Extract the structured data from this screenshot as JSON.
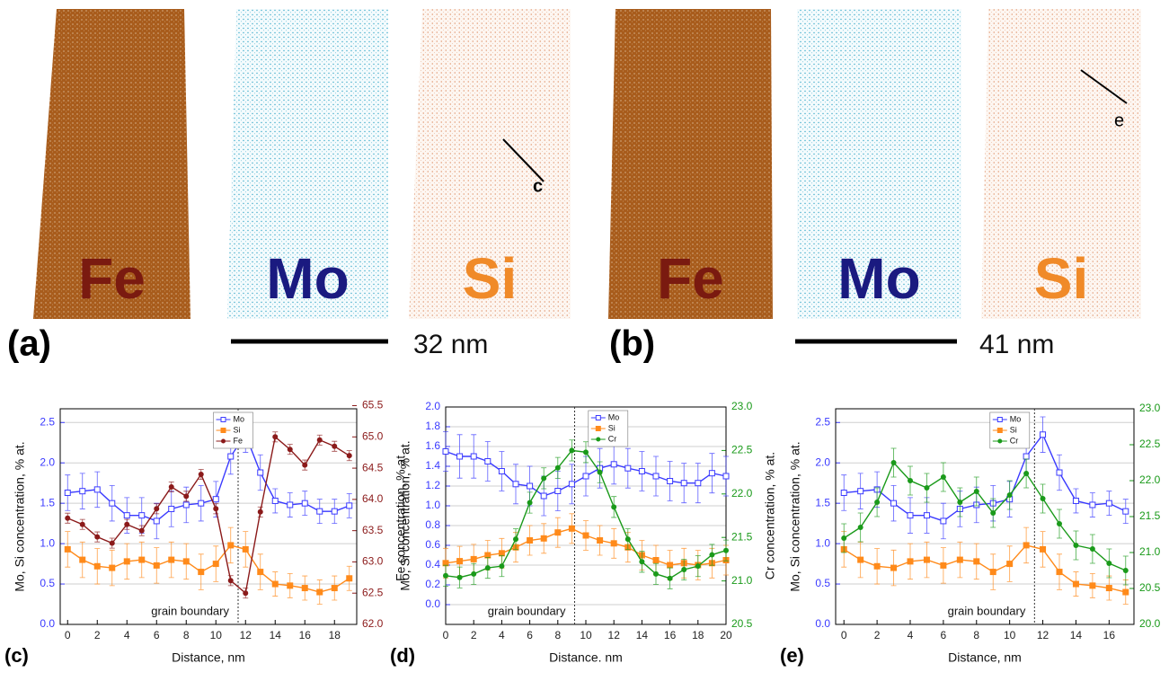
{
  "maps": [
    {
      "panel": "(a)",
      "scale": "32 nm",
      "images": [
        {
          "element": "Fe"
        },
        {
          "element": "Mo"
        },
        {
          "element": "Si",
          "line_label": "c"
        }
      ]
    },
    {
      "panel": "(b)",
      "scale": "41 nm",
      "images": [
        {
          "element": "Fe"
        },
        {
          "element": "Mo"
        },
        {
          "element": "Si",
          "line_label": "e"
        }
      ]
    }
  ],
  "chart_data": [
    {
      "type": "line",
      "label": "(c)",
      "xlabel": "Distance, nm",
      "ylabel": "Mo, Si concentration, % at.",
      "y2label": "Fe concentration, % at.",
      "annotation": "grain boundary",
      "vline": 11.5,
      "grid": true,
      "legend": "upper right",
      "x": [
        0,
        1,
        2,
        3,
        4,
        5,
        6,
        7,
        8,
        9,
        10,
        11,
        12,
        13,
        14,
        15,
        16,
        17,
        18,
        19
      ],
      "xlim": [
        -0.5,
        19.5
      ],
      "xticks": [
        0,
        2,
        4,
        6,
        8,
        10,
        12,
        14,
        16,
        18
      ],
      "ylim": [
        0,
        2.67
      ],
      "yticks": [
        {
          "value": 0,
          "label": "0.0"
        },
        0.5,
        {
          "value": 1,
          "label": "1.0"
        },
        1.5,
        {
          "value": 2,
          "label": "2.0"
        },
        2.5
      ],
      "y2lim": [
        62.0,
        65.45
      ],
      "y2ticks": [
        {
          "value": 62,
          "label": "62.0"
        },
        62.5,
        {
          "value": 63,
          "label": "63.0"
        },
        63.5,
        {
          "value": 64,
          "label": "64.0"
        },
        64.5,
        {
          "value": 65,
          "label": "65.0"
        },
        65.5
      ],
      "series": [
        {
          "name": "Mo",
          "color": "#3a3aff",
          "marker": "open-square",
          "values": [
            1.63,
            1.65,
            1.67,
            1.5,
            1.35,
            1.35,
            1.28,
            1.43,
            1.48,
            1.5,
            1.55,
            2.08,
            2.35,
            1.88,
            1.53,
            1.48,
            1.5,
            1.4,
            1.4,
            1.47
          ],
          "errors": [
            0.22,
            0.22,
            0.22,
            0.22,
            0.22,
            0.22,
            0.22,
            0.22,
            0.22,
            0.22,
            0.22,
            0.22,
            0.22,
            0.22,
            0.15,
            0.15,
            0.15,
            0.15,
            0.15,
            0.15
          ]
        },
        {
          "name": "Si",
          "color": "#ff8a1a",
          "marker": "square",
          "values": [
            0.93,
            0.8,
            0.72,
            0.7,
            0.78,
            0.8,
            0.73,
            0.8,
            0.78,
            0.65,
            0.75,
            0.98,
            0.93,
            0.65,
            0.5,
            0.48,
            0.45,
            0.4,
            0.45,
            0.57
          ],
          "errors": [
            0.22,
            0.22,
            0.22,
            0.22,
            0.22,
            0.22,
            0.22,
            0.22,
            0.22,
            0.22,
            0.22,
            0.22,
            0.22,
            0.22,
            0.15,
            0.15,
            0.15,
            0.15,
            0.15,
            0.15
          ]
        },
        {
          "name": "Fe",
          "color": "#8b1a1a",
          "marker": "circle",
          "axis": "y2",
          "values": [
            63.7,
            63.6,
            63.4,
            63.3,
            63.6,
            63.5,
            63.85,
            64.2,
            64.05,
            64.4,
            63.85,
            62.7,
            62.5,
            63.8,
            65.0,
            64.8,
            64.55,
            64.95,
            64.85,
            64.7
          ],
          "errors": [
            0.08,
            0.08,
            0.08,
            0.08,
            0.08,
            0.08,
            0.08,
            0.08,
            0.08,
            0.08,
            0.08,
            0.08,
            0.08,
            0.08,
            0.08,
            0.08,
            0.08,
            0.08,
            0.08,
            0.08
          ]
        }
      ]
    },
    {
      "type": "line",
      "label": "(d)",
      "xlabel": "Distance. nm",
      "ylabel": "Mo, Si concentration, % at.",
      "y2label": "Cr concentration, % at.",
      "annotation": "grain boundary",
      "vline": 9.2,
      "grid": true,
      "legend": "upper right",
      "x": [
        0,
        1,
        2,
        3,
        4,
        5,
        6,
        7,
        8,
        9,
        10,
        11,
        12,
        13,
        14,
        15,
        16,
        17,
        18,
        19,
        20
      ],
      "xlim": [
        0,
        20
      ],
      "xticks": [
        0,
        2,
        4,
        6,
        8,
        10,
        12,
        14,
        16,
        18,
        20
      ],
      "ylim": [
        -0.2,
        2.0
      ],
      "yticks": [
        {
          "value": 0,
          "label": "0.0"
        },
        0.2,
        0.4,
        0.6,
        0.8,
        {
          "value": 1,
          "label": "1.0"
        },
        1.2,
        1.4,
        1.6,
        1.8,
        {
          "value": 2,
          "label": "2.0"
        }
      ],
      "y2lim": [
        20.5,
        23.0
      ],
      "y2ticks": [
        20.5,
        {
          "value": 21,
          "label": "21.0"
        },
        21.5,
        {
          "value": 22,
          "label": "22.0"
        },
        22.5,
        {
          "value": 23,
          "label": "23.0"
        }
      ],
      "series": [
        {
          "name": "Mo",
          "color": "#3a3aff",
          "marker": "open-square",
          "values": [
            1.55,
            1.5,
            1.5,
            1.45,
            1.35,
            1.22,
            1.2,
            1.1,
            1.15,
            1.22,
            1.3,
            1.38,
            1.42,
            1.38,
            1.35,
            1.3,
            1.25,
            1.23,
            1.23,
            1.33,
            1.3
          ],
          "errors": [
            0.2,
            0.22,
            0.22,
            0.2,
            0.2,
            0.2,
            0.2,
            0.2,
            0.2,
            0.2,
            0.2,
            0.2,
            0.2,
            0.2,
            0.2,
            0.2,
            0.2,
            0.2,
            0.2,
            0.2,
            0.2
          ]
        },
        {
          "name": "Si",
          "color": "#ff8a1a",
          "marker": "square",
          "values": [
            0.42,
            0.44,
            0.46,
            0.5,
            0.52,
            0.58,
            0.65,
            0.67,
            0.73,
            0.77,
            0.7,
            0.65,
            0.62,
            0.58,
            0.5,
            0.45,
            0.4,
            0.42,
            0.4,
            0.42,
            0.45
          ],
          "errors": [
            0.15,
            0.15,
            0.15,
            0.15,
            0.15,
            0.15,
            0.15,
            0.15,
            0.15,
            0.15,
            0.15,
            0.15,
            0.15,
            0.15,
            0.15,
            0.15,
            0.15,
            0.15,
            0.15,
            0.15,
            0.15
          ]
        },
        {
          "name": "Cr",
          "color": "#1a9a1a",
          "marker": "circle",
          "axis": "y2",
          "values": [
            21.06,
            21.04,
            21.08,
            21.15,
            21.17,
            21.48,
            21.9,
            22.18,
            22.3,
            22.5,
            22.48,
            22.25,
            21.85,
            21.48,
            21.22,
            21.08,
            21.03,
            21.13,
            21.17,
            21.3,
            21.35
          ],
          "errors": [
            0.12,
            0.12,
            0.12,
            0.12,
            0.12,
            0.12,
            0.12,
            0.12,
            0.12,
            0.12,
            0.12,
            0.12,
            0.12,
            0.12,
            0.12,
            0.12,
            0.12,
            0.12,
            0.12,
            0.12,
            0.12
          ]
        }
      ]
    },
    {
      "type": "line",
      "label": "(e)",
      "xlabel": "Distance, nm",
      "ylabel": "Mo, Si concentration, % at.",
      "y2label": "Cr concentration, % at.",
      "annotation": "grain boundary",
      "vline": 11.5,
      "grid": true,
      "legend": "upper right",
      "x": [
        0,
        1,
        2,
        3,
        4,
        5,
        6,
        7,
        8,
        9,
        10,
        11,
        12,
        13,
        14,
        15,
        16,
        17
      ],
      "xlim": [
        -0.5,
        17.5
      ],
      "xticks": [
        0,
        2,
        4,
        6,
        8,
        10,
        12,
        14,
        16
      ],
      "ylim": [
        0,
        2.67
      ],
      "yticks": [
        {
          "value": 0,
          "label": "0.0"
        },
        0.5,
        {
          "value": 1,
          "label": "1.0"
        },
        1.5,
        {
          "value": 2,
          "label": "2.0"
        },
        2.5
      ],
      "y2lim": [
        20.0,
        23.0
      ],
      "y2ticks": [
        {
          "value": 20,
          "label": "20.0"
        },
        20.5,
        {
          "value": 21,
          "label": "21.0"
        },
        21.5,
        {
          "value": 22,
          "label": "22.0"
        },
        22.5,
        {
          "value": 23,
          "label": "23.0"
        }
      ],
      "series": [
        {
          "name": "Mo",
          "color": "#3a3aff",
          "marker": "open-square",
          "values": [
            1.63,
            1.65,
            1.67,
            1.5,
            1.35,
            1.35,
            1.28,
            1.43,
            1.48,
            1.5,
            1.55,
            2.08,
            2.35,
            1.88,
            1.53,
            1.48,
            1.5,
            1.4
          ],
          "errors": [
            0.22,
            0.22,
            0.22,
            0.22,
            0.22,
            0.22,
            0.22,
            0.22,
            0.22,
            0.22,
            0.22,
            0.22,
            0.22,
            0.22,
            0.15,
            0.15,
            0.15,
            0.15
          ]
        },
        {
          "name": "Si",
          "color": "#ff8a1a",
          "marker": "square",
          "values": [
            0.93,
            0.8,
            0.72,
            0.7,
            0.78,
            0.8,
            0.73,
            0.8,
            0.78,
            0.65,
            0.75,
            0.98,
            0.93,
            0.65,
            0.5,
            0.48,
            0.45,
            0.4
          ],
          "errors": [
            0.22,
            0.22,
            0.22,
            0.22,
            0.22,
            0.22,
            0.22,
            0.22,
            0.22,
            0.22,
            0.22,
            0.22,
            0.22,
            0.22,
            0.15,
            0.15,
            0.15,
            0.15
          ]
        },
        {
          "name": "Cr",
          "color": "#1a9a1a",
          "marker": "circle",
          "axis": "y2",
          "values": [
            21.2,
            21.35,
            21.7,
            22.25,
            22.0,
            21.9,
            22.05,
            21.7,
            21.85,
            21.55,
            21.8,
            22.1,
            21.75,
            21.4,
            21.1,
            21.05,
            20.85,
            20.75
          ],
          "errors": [
            0.2,
            0.2,
            0.2,
            0.2,
            0.2,
            0.2,
            0.2,
            0.2,
            0.2,
            0.2,
            0.2,
            0.2,
            0.2,
            0.2,
            0.2,
            0.2,
            0.2,
            0.2
          ]
        }
      ]
    }
  ]
}
